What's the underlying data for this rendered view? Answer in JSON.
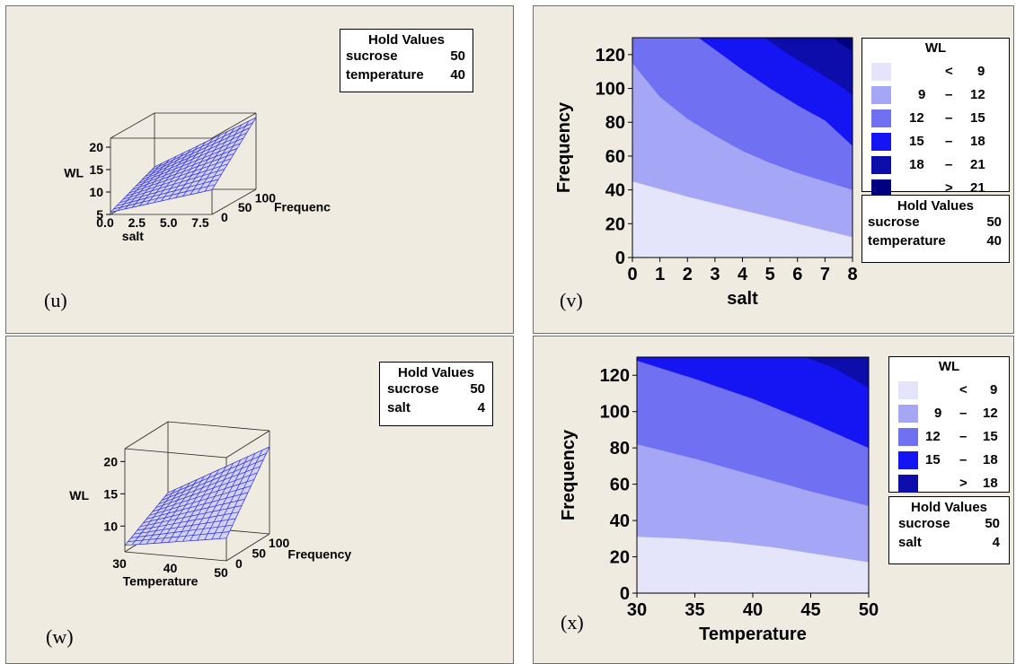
{
  "panels": {
    "u": {
      "tag": "(u)",
      "hold": {
        "title": "Hold Values",
        "rows": [
          {
            "name": "sucrose",
            "value": "50"
          },
          {
            "name": "temperature",
            "value": "40"
          }
        ]
      }
    },
    "v": {
      "tag": "(v)"
    },
    "w": {
      "tag": "(w)",
      "hold": {
        "title": "Hold Values",
        "rows": [
          {
            "name": "sucrose",
            "value": "50"
          },
          {
            "name": "salt",
            "value": "4"
          }
        ]
      }
    },
    "x": {
      "tag": "(x)"
    }
  },
  "colors": {
    "background": "#efebe1",
    "levels": [
      "#e4e4fa",
      "#a6a6f6",
      "#7070f2",
      "#1515f4",
      "#0d0dab",
      "#000080"
    ],
    "surface_fill": "#d2d2f8",
    "surface_mesh": "#2b2bd0"
  },
  "chart_data": [
    {
      "id": "u",
      "type": "surface",
      "zlabel": "WL",
      "xlabel": "salt",
      "ylabel": "Frequenc",
      "z_ticks": [
        "5",
        "10",
        "15",
        "20"
      ],
      "x_ticks": [
        "0.0",
        "2.5",
        "5.0",
        "7.5"
      ],
      "y_ticks": [
        "0",
        "50",
        "100"
      ],
      "xlim": [
        0,
        8
      ],
      "ylim": [
        0,
        130
      ],
      "zlim": [
        5,
        22
      ]
    },
    {
      "id": "v",
      "type": "contour",
      "xlabel": "salt",
      "ylabel": "Frequency",
      "x_ticks": [
        "0",
        "1",
        "2",
        "3",
        "4",
        "5",
        "6",
        "7",
        "8"
      ],
      "y_ticks": [
        "0",
        "20",
        "40",
        "60",
        "80",
        "100",
        "120"
      ],
      "xlim": [
        0,
        8
      ],
      "ylim": [
        0,
        130
      ],
      "boundaries": [
        {
          "level": 9,
          "points": [
            [
              0,
              45
            ],
            [
              2,
              36
            ],
            [
              4,
              28
            ],
            [
              6,
              20
            ],
            [
              8,
              12
            ]
          ]
        },
        {
          "level": 12,
          "points": [
            [
              0,
              115
            ],
            [
              1,
              95
            ],
            [
              2,
              82
            ],
            [
              3,
              72
            ],
            [
              4,
              63
            ],
            [
              5,
              56
            ],
            [
              6,
              50
            ],
            [
              7,
              45
            ],
            [
              8,
              40
            ]
          ]
        },
        {
          "level": 15,
          "points": [
            [
              2.4,
              130
            ],
            [
              3,
              123
            ],
            [
              4,
              111
            ],
            [
              5,
              100
            ],
            [
              6,
              90
            ],
            [
              7,
              81
            ],
            [
              8,
              66
            ]
          ]
        },
        {
          "level": 18,
          "points": [
            [
              4.8,
              130
            ],
            [
              5.5,
              122
            ],
            [
              6.5,
              112
            ],
            [
              7.5,
              102
            ],
            [
              8,
              96
            ]
          ]
        },
        {
          "level": 21,
          "points": [
            [
              7.3,
              130
            ],
            [
              7.6,
              126
            ],
            [
              8,
              122
            ]
          ]
        }
      ],
      "legend": {
        "title": "WL",
        "items": [
          {
            "lo": "<",
            "hi": "9",
            "color": "#e4e4fa"
          },
          {
            "lo": "9",
            "dash": "–",
            "hi": "12",
            "color": "#a6a6f6"
          },
          {
            "lo": "12",
            "dash": "–",
            "hi": "15",
            "color": "#7070f2"
          },
          {
            "lo": "15",
            "dash": "–",
            "hi": "18",
            "color": "#1515f4"
          },
          {
            "lo": "18",
            "dash": "–",
            "hi": "21",
            "color": "#0d0dab"
          },
          {
            "lo": ">",
            "hi": "21",
            "color": "#000080"
          }
        ]
      },
      "hold": {
        "title": "Hold Values",
        "rows": [
          {
            "name": "sucrose",
            "value": "50"
          },
          {
            "name": "temperature",
            "value": "40"
          }
        ]
      }
    },
    {
      "id": "w",
      "type": "surface",
      "zlabel": "WL",
      "xlabel": "Temperature",
      "ylabel": "Frequency",
      "z_ticks": [
        "10",
        "15",
        "20"
      ],
      "x_ticks": [
        "30",
        "40",
        "50"
      ],
      "y_ticks": [
        "0",
        "50",
        "100"
      ],
      "xlim": [
        30,
        50
      ],
      "ylim": [
        0,
        130
      ],
      "zlim": [
        6,
        22
      ]
    },
    {
      "id": "x",
      "type": "contour",
      "xlabel": "Temperature",
      "ylabel": "Frequency",
      "x_ticks": [
        "30",
        "35",
        "40",
        "45",
        "50"
      ],
      "y_ticks": [
        "0",
        "20",
        "40",
        "60",
        "80",
        "100",
        "120"
      ],
      "xlim": [
        30,
        50
      ],
      "ylim": [
        0,
        130
      ],
      "boundaries": [
        {
          "level": 9,
          "points": [
            [
              30,
              31
            ],
            [
              34,
              30
            ],
            [
              38,
              28
            ],
            [
              42,
              25
            ],
            [
              46,
              21
            ],
            [
              50,
              17
            ]
          ]
        },
        {
          "level": 12,
          "points": [
            [
              30,
              82
            ],
            [
              35,
              74
            ],
            [
              40,
              65
            ],
            [
              45,
              56
            ],
            [
              50,
              48
            ]
          ]
        },
        {
          "level": 15,
          "points": [
            [
              30,
              128
            ],
            [
              35,
              118
            ],
            [
              40,
              107
            ],
            [
              45,
              94
            ],
            [
              50,
              80
            ]
          ]
        },
        {
          "level": 18,
          "points": [
            [
              44.5,
              130
            ],
            [
              47,
              124
            ],
            [
              50,
              113
            ]
          ]
        }
      ],
      "legend": {
        "title": "WL",
        "items": [
          {
            "lo": "<",
            "hi": "9",
            "color": "#e4e4fa"
          },
          {
            "lo": "9",
            "dash": "–",
            "hi": "12",
            "color": "#a6a6f6"
          },
          {
            "lo": "12",
            "dash": "–",
            "hi": "15",
            "color": "#7070f2"
          },
          {
            "lo": "15",
            "dash": "–",
            "hi": "18",
            "color": "#1515f4"
          },
          {
            "lo": ">",
            "hi": "18",
            "color": "#0d0dab"
          }
        ]
      },
      "hold": {
        "title": "Hold Values",
        "rows": [
          {
            "name": "sucrose",
            "value": "50"
          },
          {
            "name": "salt",
            "value": "4"
          }
        ]
      }
    }
  ]
}
